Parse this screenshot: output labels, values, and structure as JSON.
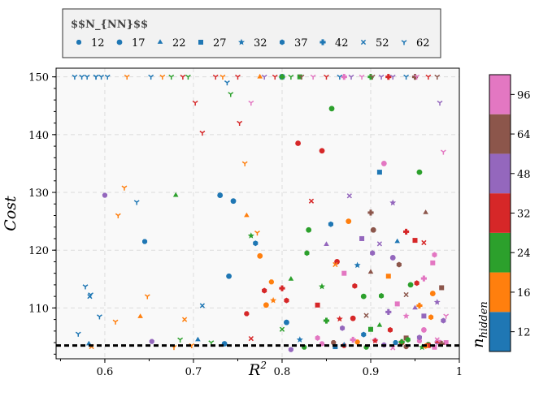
{
  "chart_data": {
    "type": "scatter",
    "title": "",
    "xlabel": "R²",
    "ylabel": "Cost",
    "xlim": [
      0.545,
      1.0
    ],
    "ylim": [
      101.2,
      151.5
    ],
    "x_ticks": [
      0.6,
      0.7,
      0.8,
      0.9,
      1.0
    ],
    "x_tick_labels": [
      "0.6",
      "0.7",
      "0.8",
      "0.9",
      "1"
    ],
    "y_ticks": [
      110,
      120,
      130,
      140,
      150
    ],
    "y_tick_labels": [
      "110",
      "120",
      "130",
      "140",
      "150"
    ],
    "grid": true,
    "reference_line": {
      "y": 103.5,
      "style": "dashed",
      "color": "#000000"
    },
    "legend": {
      "title": "$$N_{NN}$$",
      "placement": "top",
      "entries": [
        {
          "label": "12",
          "marker": "octagon"
        },
        {
          "label": "17",
          "marker": "circle"
        },
        {
          "label": "22",
          "marker": "triangle"
        },
        {
          "label": "27",
          "marker": "square"
        },
        {
          "label": "32",
          "marker": "star"
        },
        {
          "label": "37",
          "marker": "hexagon"
        },
        {
          "label": "42",
          "marker": "plus"
        },
        {
          "label": "52",
          "marker": "x"
        },
        {
          "label": "62",
          "marker": "tri-down"
        }
      ]
    },
    "colorbar": {
      "label": "n_hidden",
      "label_main": "n",
      "label_sub": "hidden",
      "ticks": [
        "12",
        "16",
        "24",
        "32",
        "48",
        "64",
        "96"
      ],
      "colors": [
        "#1f77b4",
        "#ff7f0e",
        "#2ca02c",
        "#d62728",
        "#9467bd",
        "#8c564b",
        "#e377c2"
      ]
    },
    "series": [
      {
        "name": "12",
        "marker": "octagon",
        "points": [
          [
            0.6,
            129.5,
            4
          ],
          [
            0.645,
            121.5,
            0
          ],
          [
            0.653,
            104.2,
            4
          ],
          [
            0.76,
            109,
            3
          ],
          [
            0.788,
            114.5,
            1
          ],
          [
            0.81,
            102.8,
            4
          ],
          [
            0.825,
            103.2,
            2
          ],
          [
            0.845,
            103.8,
            6
          ],
          [
            0.858,
            104,
            5
          ],
          [
            0.87,
            103.5,
            3
          ],
          [
            0.885,
            104.1,
            1
          ],
          [
            0.895,
            103.2,
            2
          ],
          [
            0.905,
            104.4,
            6
          ],
          [
            0.915,
            103.6,
            4
          ],
          [
            0.928,
            104,
            0
          ],
          [
            0.94,
            103.3,
            5
          ],
          [
            0.955,
            104.3,
            6
          ],
          [
            0.965,
            103.7,
            2
          ],
          [
            0.975,
            104.1,
            4
          ]
        ]
      },
      {
        "name": "17",
        "marker": "circle",
        "points": [
          [
            0.73,
            129.5,
            0
          ],
          [
            0.745,
            128.5,
            0
          ],
          [
            0.74,
            115.5,
            0
          ],
          [
            0.735,
            103.8,
            0
          ],
          [
            0.775,
            119,
            1
          ],
          [
            0.782,
            110.5,
            1
          ],
          [
            0.805,
            107.5,
            0
          ],
          [
            0.818,
            138.5,
            3
          ],
          [
            0.83,
            123.5,
            2
          ],
          [
            0.845,
            137.2,
            3
          ],
          [
            0.856,
            144.5,
            2
          ],
          [
            0.862,
            118,
            3
          ],
          [
            0.875,
            125,
            1
          ],
          [
            0.88,
            108.2,
            3
          ],
          [
            0.892,
            112,
            2
          ],
          [
            0.903,
            123.5,
            5
          ],
          [
            0.915,
            135,
            6
          ],
          [
            0.925,
            118.7,
            4
          ],
          [
            0.935,
            104,
            3
          ],
          [
            0.945,
            114,
            2
          ],
          [
            0.955,
            133.5,
            2
          ],
          [
            0.96,
            106.2,
            6
          ],
          [
            0.97,
            112.5,
            1
          ],
          [
            0.978,
            104,
            6
          ]
        ]
      },
      {
        "name": "22",
        "marker": "triangle",
        "points": [
          [
            0.582,
            103.8,
            0
          ],
          [
            0.64,
            108.5,
            1
          ],
          [
            0.68,
            129.5,
            2
          ],
          [
            0.705,
            104.5,
            0
          ],
          [
            0.76,
            126,
            1
          ],
          [
            0.775,
            150,
            1
          ],
          [
            0.81,
            115,
            2
          ],
          [
            0.85,
            121,
            4
          ],
          [
            0.87,
            103.6,
            0
          ],
          [
            0.9,
            116.2,
            5
          ],
          [
            0.91,
            107,
            2
          ],
          [
            0.93,
            121.5,
            0
          ],
          [
            0.95,
            110,
            4
          ],
          [
            0.962,
            126.5,
            5
          ],
          [
            0.975,
            104.2,
            3
          ]
        ]
      },
      {
        "name": "27",
        "marker": "square",
        "points": [
          [
            0.8,
            150,
            0
          ],
          [
            0.82,
            150,
            2
          ],
          [
            0.84,
            110.5,
            3
          ],
          [
            0.86,
            103.3,
            0
          ],
          [
            0.87,
            116,
            6
          ],
          [
            0.89,
            122,
            4
          ],
          [
            0.9,
            106.3,
            2
          ],
          [
            0.91,
            133.5,
            0
          ],
          [
            0.92,
            115.5,
            1
          ],
          [
            0.93,
            110.7,
            6
          ],
          [
            0.94,
            104.8,
            5
          ],
          [
            0.95,
            121.7,
            3
          ],
          [
            0.96,
            108.6,
            4
          ],
          [
            0.97,
            117.8,
            6
          ],
          [
            0.98,
            113.5,
            5
          ],
          [
            0.965,
            103.5,
            3
          ],
          [
            0.972,
            103.2,
            6
          ],
          [
            0.985,
            104,
            6
          ]
        ]
      },
      {
        "name": "32",
        "marker": "star",
        "points": [
          [
            0.765,
            122.5,
            2
          ],
          [
            0.79,
            111.3,
            1
          ],
          [
            0.82,
            104.5,
            0
          ],
          [
            0.845,
            113.7,
            2
          ],
          [
            0.865,
            108.1,
            3
          ],
          [
            0.885,
            117.4,
            0
          ],
          [
            0.905,
            104.3,
            3
          ],
          [
            0.925,
            128.2,
            4
          ],
          [
            0.94,
            108.6,
            6
          ],
          [
            0.958,
            103.2,
            2
          ],
          [
            0.975,
            111,
            4
          ]
        ]
      },
      {
        "name": "37",
        "marker": "hexagon",
        "points": [
          [
            0.77,
            121.2,
            0
          ],
          [
            0.78,
            113,
            3
          ],
          [
            0.805,
            111.3,
            3
          ],
          [
            0.828,
            119.5,
            2
          ],
          [
            0.84,
            104.8,
            6
          ],
          [
            0.855,
            124.5,
            0
          ],
          [
            0.868,
            106.5,
            4
          ],
          [
            0.882,
            113.8,
            3
          ],
          [
            0.892,
            105.4,
            0
          ],
          [
            0.902,
            119.5,
            4
          ],
          [
            0.912,
            112.1,
            2
          ],
          [
            0.922,
            106.2,
            3
          ],
          [
            0.932,
            117.5,
            5
          ],
          [
            0.942,
            104.5,
            2
          ],
          [
            0.952,
            114.3,
            3
          ],
          [
            0.962,
            103.4,
            1
          ],
          [
            0.972,
            119.2,
            6
          ],
          [
            0.982,
            107.8,
            4
          ],
          [
            0.968,
            108.4,
            1
          ],
          [
            0.955,
            104.9,
            4
          ]
        ]
      },
      {
        "name": "42",
        "marker": "plus",
        "points": [
          [
            0.8,
            150,
            2
          ],
          [
            0.87,
            150,
            6
          ],
          [
            0.9,
            150,
            2
          ],
          [
            0.92,
            150,
            3
          ],
          [
            0.95,
            150,
            5
          ],
          [
            0.8,
            113.4,
            3
          ],
          [
            0.85,
            107.8,
            2
          ],
          [
            0.88,
            104.5,
            6
          ],
          [
            0.9,
            126.5,
            5
          ],
          [
            0.92,
            109.3,
            4
          ],
          [
            0.94,
            123.2,
            3
          ],
          [
            0.96,
            115.1,
            6
          ],
          [
            0.98,
            103.8,
            5
          ],
          [
            0.935,
            104.1,
            2
          ],
          [
            0.955,
            110.4,
            1
          ]
        ]
      },
      {
        "name": "52",
        "marker": "x",
        "points": [
          [
            0.583,
            112,
            0
          ],
          [
            0.585,
            103.3,
            1
          ],
          [
            0.69,
            108,
            1
          ],
          [
            0.71,
            110.4,
            0
          ],
          [
            0.765,
            104.7,
            3
          ],
          [
            0.8,
            106.3,
            2
          ],
          [
            0.833,
            128.5,
            3
          ],
          [
            0.86,
            117.5,
            1
          ],
          [
            0.876,
            129.4,
            4
          ],
          [
            0.895,
            108.7,
            5
          ],
          [
            0.91,
            121.1,
            4
          ],
          [
            0.925,
            103.1,
            6
          ],
          [
            0.94,
            112.3,
            5
          ],
          [
            0.96,
            121.3,
            3
          ],
          [
            0.975,
            104.5,
            6
          ]
        ]
      },
      {
        "name": "62",
        "marker": "tri-down",
        "points": [
          [
            0.566,
            150,
            0
          ],
          [
            0.57,
            105.5,
            0
          ],
          [
            0.574,
            150,
            0
          ],
          [
            0.578,
            113.7,
            0
          ],
          [
            0.58,
            150,
            0
          ],
          [
            0.584,
            112.3,
            0
          ],
          [
            0.59,
            150,
            0
          ],
          [
            0.59,
            150,
            0
          ],
          [
            0.596,
            150,
            0
          ],
          [
            0.594,
            108.5,
            0
          ],
          [
            0.603,
            150,
            0
          ],
          [
            0.612,
            107.6,
            1
          ],
          [
            0.615,
            126,
            1
          ],
          [
            0.622,
            130.8,
            1
          ],
          [
            0.625,
            150,
            1
          ],
          [
            0.636,
            128.3,
            0
          ],
          [
            0.648,
            112,
            1
          ],
          [
            0.652,
            150,
            0
          ],
          [
            0.665,
            150,
            1
          ],
          [
            0.675,
            150,
            2
          ],
          [
            0.678,
            103.2,
            1
          ],
          [
            0.685,
            104.5,
            2
          ],
          [
            0.688,
            150,
            3
          ],
          [
            0.694,
            150,
            2
          ],
          [
            0.698,
            103.5,
            1
          ],
          [
            0.702,
            145.5,
            3
          ],
          [
            0.71,
            140.3,
            3
          ],
          [
            0.72,
            104,
            2
          ],
          [
            0.725,
            150,
            3
          ],
          [
            0.733,
            150,
            1
          ],
          [
            0.738,
            149,
            0
          ],
          [
            0.742,
            147,
            2
          ],
          [
            0.75,
            150,
            3
          ],
          [
            0.752,
            142,
            3
          ],
          [
            0.758,
            135,
            1
          ],
          [
            0.765,
            145.5,
            6
          ],
          [
            0.772,
            123,
            1
          ],
          [
            0.78,
            150,
            4
          ],
          [
            0.792,
            150,
            3
          ],
          [
            0.81,
            150,
            2
          ],
          [
            0.822,
            150,
            5
          ],
          [
            0.835,
            150,
            6
          ],
          [
            0.85,
            150,
            3
          ],
          [
            0.865,
            150,
            0
          ],
          [
            0.878,
            150,
            4
          ],
          [
            0.89,
            150,
            6
          ],
          [
            0.902,
            150,
            5
          ],
          [
            0.912,
            150,
            4
          ],
          [
            0.925,
            150,
            4
          ],
          [
            0.94,
            150,
            0
          ],
          [
            0.952,
            150,
            6
          ],
          [
            0.965,
            150,
            3
          ],
          [
            0.975,
            150,
            5
          ],
          [
            0.978,
            145.5,
            4
          ],
          [
            0.982,
            137,
            6
          ],
          [
            0.985,
            108.6,
            6
          ]
        ]
      }
    ]
  }
}
